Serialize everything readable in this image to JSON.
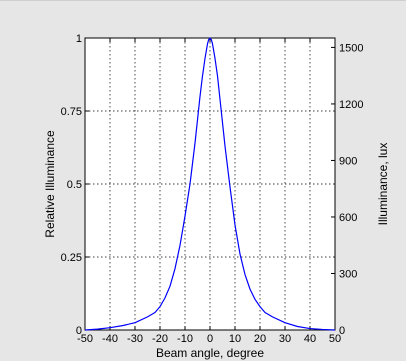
{
  "chart_data": {
    "type": "line",
    "title": "",
    "xlabel": "Beam angle, degree",
    "ylabel": "Relative Illuminance",
    "y2label": "Illuminance, lux",
    "xlim": [
      -50,
      50
    ],
    "ylim": [
      0,
      1
    ],
    "y2lim": [
      0,
      1550
    ],
    "x_ticks": [
      -50,
      -40,
      -30,
      -20,
      -10,
      0,
      10,
      20,
      30,
      40,
      50
    ],
    "y_ticks": [
      0,
      0.25,
      0.5,
      0.75,
      1
    ],
    "y_tick_labels": [
      "0",
      "0.25",
      "0.5",
      "0.75",
      "1"
    ],
    "y2_ticks": [
      0,
      300,
      600,
      900,
      1200,
      1500
    ],
    "grid": true,
    "series": [
      {
        "color": "#0000ff",
        "x": [
          -50,
          -45,
          -40,
          -35,
          -30,
          -25,
          -22,
          -20,
          -18,
          -16,
          -14,
          -12,
          -10,
          -8,
          -6,
          -4,
          -3,
          -2,
          -1,
          -0.5,
          0,
          0.5,
          1,
          2,
          3,
          4,
          6,
          8,
          10,
          12,
          14,
          16,
          18,
          20,
          22,
          25,
          30,
          35,
          40,
          45,
          50
        ],
        "y": [
          0.0,
          0.003,
          0.008,
          0.015,
          0.025,
          0.045,
          0.06,
          0.08,
          0.11,
          0.15,
          0.21,
          0.29,
          0.39,
          0.5,
          0.64,
          0.8,
          0.87,
          0.93,
          0.98,
          0.995,
          1.0,
          0.995,
          0.98,
          0.93,
          0.87,
          0.79,
          0.63,
          0.49,
          0.36,
          0.26,
          0.19,
          0.14,
          0.105,
          0.08,
          0.06,
          0.045,
          0.025,
          0.012,
          0.005,
          0.002,
          0.0
        ]
      }
    ]
  }
}
